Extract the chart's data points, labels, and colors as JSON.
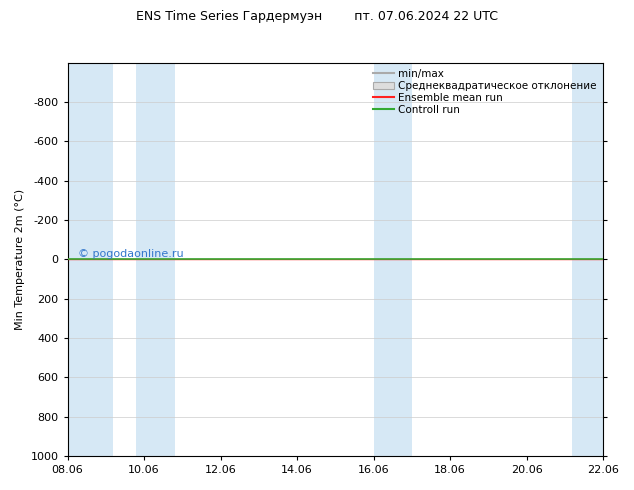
{
  "title": "ENS Time Series Гардермуэн        пт. 07.06.2024 22 UTC",
  "ylabel": "Min Temperature 2m (°C)",
  "ylim_top": -1000,
  "ylim_bottom": 1000,
  "yticks": [
    -800,
    -600,
    -400,
    -200,
    0,
    200,
    400,
    600,
    800,
    1000
  ],
  "background_color": "#ffffff",
  "plot_bg_color": "#ffffff",
  "stripe_color": "#d6e8f5",
  "stripe_positions": [
    [
      0,
      0.5
    ],
    [
      1.5,
      2.5
    ],
    [
      7.5,
      8.5
    ],
    [
      13.5,
      14.0
    ]
  ],
  "watermark": "© pogodaonline.ru",
  "watermark_color": "#3377cc",
  "legend_labels": [
    "min/max",
    "Среднеквадратическое отклонение",
    "Ensemble mean run",
    "Controll run"
  ],
  "minmax_color": "#aaaaaa",
  "stddev_color": "#cccccc",
  "ensemble_mean_color": "#ff2222",
  "control_run_color": "#33aa33",
  "tick_label_dates": [
    "08.06",
    "10.06",
    "12.06",
    "14.06",
    "16.06",
    "18.06",
    "20.06",
    "22.06"
  ],
  "tick_positions": [
    0,
    2,
    4,
    6,
    8,
    10,
    12,
    14
  ],
  "xlim": [
    0,
    14
  ],
  "data_y": 0
}
